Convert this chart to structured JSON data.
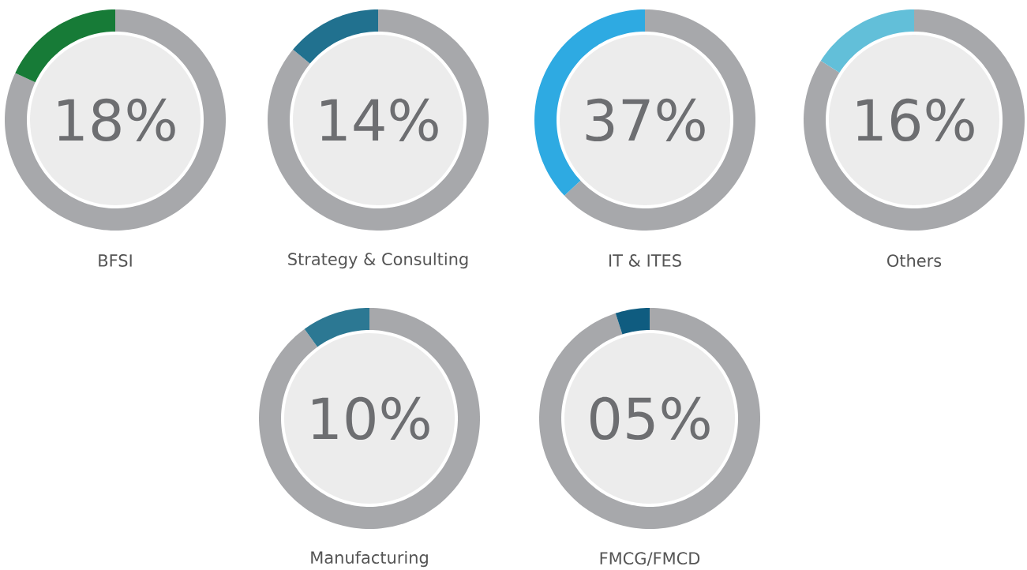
{
  "chart_data": [
    {
      "type": "donut",
      "title": "BFSI",
      "categories": [
        null,
        null
      ],
      "values": [
        18,
        82
      ],
      "colors": [
        "#177b37",
        "#a7a8ab"
      ],
      "annotations": [
        "18%"
      ]
    },
    {
      "type": "donut",
      "title": "Strategy & Consulting",
      "categories": [
        null,
        null
      ],
      "values": [
        14,
        86
      ],
      "colors": [
        "#21718f",
        "#a7a8ab"
      ],
      "annotations": [
        "14%"
      ]
    },
    {
      "type": "donut",
      "title": "IT & ITES",
      "categories": [
        null,
        null
      ],
      "values": [
        37,
        63
      ],
      "colors": [
        "#2eaae2",
        "#a7a8ab"
      ],
      "annotations": [
        "37%"
      ]
    },
    {
      "type": "donut",
      "title": "Others",
      "categories": [
        null,
        null
      ],
      "values": [
        16,
        84
      ],
      "colors": [
        "#62bfd9",
        "#a7a8ab"
      ],
      "annotations": [
        "16%"
      ]
    },
    {
      "type": "donut",
      "title": "Manufacturing",
      "categories": [
        null,
        null
      ],
      "values": [
        10,
        90
      ],
      "colors": [
        "#2c7893",
        "#a7a8ab"
      ],
      "annotations": [
        "10%"
      ]
    },
    {
      "type": "donut",
      "title": "FMCG/FMCD",
      "categories": [
        null,
        null
      ],
      "values": [
        5,
        95
      ],
      "colors": [
        "#0f5c80",
        "#a7a8ab"
      ],
      "annotations": [
        "05%"
      ]
    }
  ]
}
